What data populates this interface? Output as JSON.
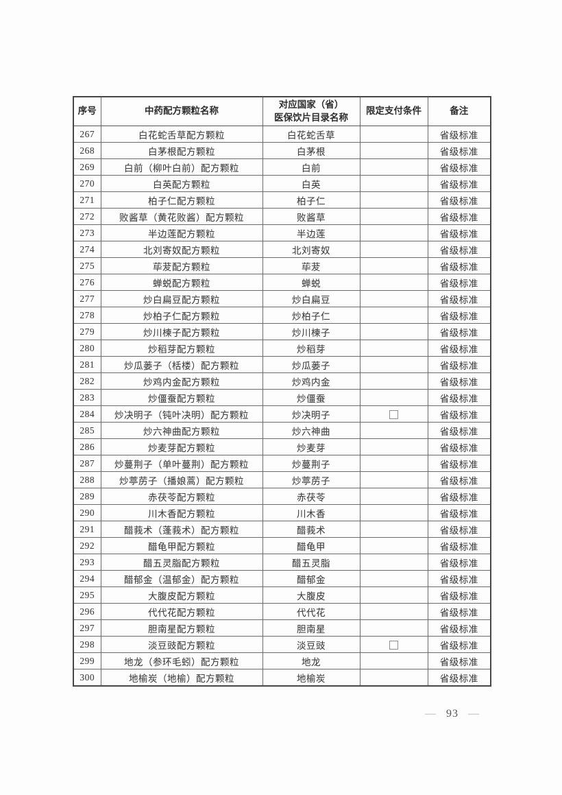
{
  "table": {
    "columns": [
      "序号",
      "中药配方颗粒名称",
      "对应国家（省）\n医保饮片目录名称",
      "限定支付条件",
      "备注"
    ],
    "rows": [
      {
        "no": "267",
        "name": "白花蛇舌草配方颗粒",
        "catalog": "白花蛇舌草",
        "payment_icon": "",
        "note": "省级标准"
      },
      {
        "no": "268",
        "name": "白茅根配方颗粒",
        "catalog": "白茅根",
        "payment_icon": "",
        "note": "省级标准"
      },
      {
        "no": "269",
        "name": "白前（柳叶白前）配方颗粒",
        "catalog": "白前",
        "payment_icon": "",
        "note": "省级标准"
      },
      {
        "no": "270",
        "name": "白英配方颗粒",
        "catalog": "白英",
        "payment_icon": "",
        "note": "省级标准"
      },
      {
        "no": "271",
        "name": "柏子仁配方颗粒",
        "catalog": "柏子仁",
        "payment_icon": "",
        "note": "省级标准"
      },
      {
        "no": "272",
        "name": "败酱草（黄花败酱）配方颗粒",
        "catalog": "败酱草",
        "payment_icon": "",
        "note": "省级标准"
      },
      {
        "no": "273",
        "name": "半边莲配方颗粒",
        "catalog": "半边莲",
        "payment_icon": "",
        "note": "省级标准"
      },
      {
        "no": "274",
        "name": "北刘寄奴配方颗粒",
        "catalog": "北刘寄奴",
        "payment_icon": "",
        "note": "省级标准"
      },
      {
        "no": "275",
        "name": "荜茇配方颗粒",
        "catalog": "荜茇",
        "payment_icon": "",
        "note": "省级标准"
      },
      {
        "no": "276",
        "name": "蝉蜕配方颗粒",
        "catalog": "蝉蜕",
        "payment_icon": "",
        "note": "省级标准"
      },
      {
        "no": "277",
        "name": "炒白扁豆配方颗粒",
        "catalog": "炒白扁豆",
        "payment_icon": "",
        "note": "省级标准"
      },
      {
        "no": "278",
        "name": "炒柏子仁配方颗粒",
        "catalog": "炒柏子仁",
        "payment_icon": "",
        "note": "省级标准"
      },
      {
        "no": "279",
        "name": "炒川楝子配方颗粒",
        "catalog": "炒川楝子",
        "payment_icon": "",
        "note": "省级标准"
      },
      {
        "no": "280",
        "name": "炒稻芽配方颗粒",
        "catalog": "炒稻芽",
        "payment_icon": "",
        "note": "省级标准"
      },
      {
        "no": "281",
        "name": "炒瓜蒌子（栝楼）配方颗粒",
        "catalog": "炒瓜蒌子",
        "payment_icon": "",
        "note": "省级标准"
      },
      {
        "no": "282",
        "name": "炒鸡内金配方颗粒",
        "catalog": "炒鸡内金",
        "payment_icon": "",
        "note": "省级标准"
      },
      {
        "no": "283",
        "name": "炒僵蚕配方颗粒",
        "catalog": "炒僵蚕",
        "payment_icon": "",
        "note": "省级标准"
      },
      {
        "no": "284",
        "name": "炒决明子（钝叶决明）配方颗粒",
        "catalog": "炒决明子",
        "payment_icon": "checkbox-unchecked-icon",
        "note": "省级标准"
      },
      {
        "no": "285",
        "name": "炒六神曲配方颗粒",
        "catalog": "炒六神曲",
        "payment_icon": "",
        "note": "省级标准"
      },
      {
        "no": "286",
        "name": "炒麦芽配方颗粒",
        "catalog": "炒麦芽",
        "payment_icon": "",
        "note": "省级标准"
      },
      {
        "no": "287",
        "name": "炒蔓荆子（单叶蔓荆）配方颗粒",
        "catalog": "炒蔓荆子",
        "payment_icon": "",
        "note": "省级标准"
      },
      {
        "no": "288",
        "name": "炒葶苈子（播娘蒿）配方颗粒",
        "catalog": "炒葶苈子",
        "payment_icon": "",
        "note": "省级标准"
      },
      {
        "no": "289",
        "name": "赤茯苓配方颗粒",
        "catalog": "赤茯苓",
        "payment_icon": "",
        "note": "省级标准"
      },
      {
        "no": "290",
        "name": "川木香配方颗粒",
        "catalog": "川木香",
        "payment_icon": "",
        "note": "省级标准"
      },
      {
        "no": "291",
        "name": "醋莪术（蓬莪术）配方颗粒",
        "catalog": "醋莪术",
        "payment_icon": "",
        "note": "省级标准"
      },
      {
        "no": "292",
        "name": "醋龟甲配方颗粒",
        "catalog": "醋龟甲",
        "payment_icon": "",
        "note": "省级标准"
      },
      {
        "no": "293",
        "name": "醋五灵脂配方颗粒",
        "catalog": "醋五灵脂",
        "payment_icon": "",
        "note": "省级标准"
      },
      {
        "no": "294",
        "name": "醋郁金（温郁金）配方颗粒",
        "catalog": "醋郁金",
        "payment_icon": "",
        "note": "省级标准"
      },
      {
        "no": "295",
        "name": "大腹皮配方颗粒",
        "catalog": "大腹皮",
        "payment_icon": "",
        "note": "省级标准"
      },
      {
        "no": "296",
        "name": "代代花配方颗粒",
        "catalog": "代代花",
        "payment_icon": "",
        "note": "省级标准"
      },
      {
        "no": "297",
        "name": "胆南星配方颗粒",
        "catalog": "胆南星",
        "payment_icon": "",
        "note": "省级标准"
      },
      {
        "no": "298",
        "name": "淡豆豉配方颗粒",
        "catalog": "淡豆豉",
        "payment_icon": "checkbox-unchecked-icon",
        "note": "省级标准"
      },
      {
        "no": "299",
        "name": "地龙（参环毛蚓）配方颗粒",
        "catalog": "地龙",
        "payment_icon": "",
        "note": "省级标准"
      },
      {
        "no": "300",
        "name": "地榆炭（地榆）配方颗粒",
        "catalog": "地榆炭",
        "payment_icon": "",
        "note": "省级标准"
      }
    ]
  },
  "footer": {
    "dash": "—",
    "page_number": "93"
  },
  "colors": {
    "border_outer": "#474747",
    "border_inner": "#6a6a6a",
    "body_text": "#3d3d3d",
    "header_text": "#2e2e2e",
    "checkbox_border": "#8e8e8e",
    "page_dash": "#a9a9a9"
  }
}
